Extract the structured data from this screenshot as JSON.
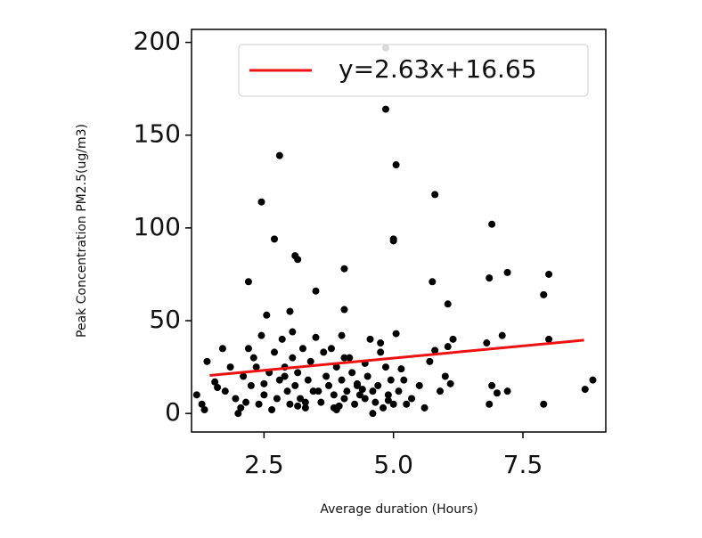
{
  "chart_data": {
    "type": "scatter",
    "xlabel": "Average duration (Hours)",
    "ylabel": "Peak Concentration PM2.5(ug/m3)",
    "xlim": [
      1.1,
      9.1
    ],
    "ylim": [
      -10,
      207
    ],
    "xticks": [
      2.5,
      {
        "value": 5,
        "label": "5.0"
      },
      7.5
    ],
    "yticks": [
      0,
      50,
      100,
      150,
      200
    ],
    "legend": "upper right",
    "color": "#000000",
    "x": [
      4.85,
      4.85,
      2.8,
      5.05,
      5.8,
      2.45,
      6.9,
      2.7,
      5.0,
      5.0,
      3.1,
      3.15,
      4.05,
      7.2,
      8.0,
      6.85,
      2.2,
      5.75,
      3.5,
      7.9,
      6.05,
      3.0,
      4.05,
      2.55,
      1.2,
      1.3,
      1.4,
      1.55,
      1.7,
      1.75,
      1.85,
      1.95,
      2.05,
      2.1,
      2.2,
      2.25,
      2.3,
      2.4,
      2.45,
      2.5,
      2.6,
      2.7,
      2.75,
      2.8,
      2.85,
      2.9,
      2.95,
      3.0,
      3.05,
      3.1,
      3.15,
      3.2,
      3.25,
      3.3,
      3.35,
      3.4,
      3.45,
      3.5,
      3.6,
      3.7,
      3.75,
      3.8,
      3.85,
      3.9,
      3.95,
      4.0,
      4.0,
      4.05,
      4.1,
      4.15,
      4.2,
      4.25,
      4.3,
      4.35,
      4.4,
      4.45,
      4.5,
      4.55,
      4.6,
      4.65,
      4.7,
      4.75,
      4.8,
      4.85,
      4.9,
      4.95,
      5.0,
      5.05,
      5.1,
      5.2,
      5.35,
      5.5,
      5.7,
      5.8,
      5.9,
      6.0,
      6.05,
      6.1,
      6.8,
      6.85,
      6.9,
      7.1,
      7.2,
      7.9,
      8.0,
      8.7,
      8.85,
      1.6,
      2.0,
      2.35,
      2.65,
      3.05,
      3.3,
      3.55,
      3.9,
      4.05,
      4.3,
      4.6,
      4.9,
      5.15,
      1.35,
      2.15,
      2.9,
      3.65,
      4.45,
      5.25,
      5.6,
      6.15,
      7.0,
      2.5,
      3.15,
      3.85,
      4.75
    ],
    "values": [
      197,
      164,
      139,
      134,
      118,
      114,
      102,
      94,
      94,
      93,
      85,
      83,
      78,
      76,
      75,
      73,
      71,
      71,
      66,
      64,
      59,
      55,
      56,
      53,
      10,
      5,
      28,
      17,
      35,
      12,
      25,
      8,
      3,
      20,
      35,
      15,
      30,
      5,
      42,
      10,
      22,
      33,
      8,
      18,
      40,
      25,
      12,
      5,
      30,
      15,
      22,
      8,
      35,
      3,
      18,
      28,
      12,
      41,
      6,
      20,
      15,
      35,
      10,
      25,
      4,
      42,
      18,
      8,
      12,
      30,
      22,
      5,
      16,
      10,
      13,
      8,
      20,
      40,
      12,
      6,
      15,
      38,
      3,
      25,
      10,
      18,
      5,
      43,
      12,
      18,
      8,
      15,
      28,
      34,
      12,
      20,
      36,
      16,
      38,
      5,
      15,
      42,
      12,
      5,
      40,
      13,
      18,
      14,
      0,
      25,
      2,
      44,
      6,
      12,
      2,
      30,
      15,
      0,
      7,
      24,
      2,
      6,
      20,
      33,
      27,
      5,
      3,
      40,
      11,
      16,
      4,
      3,
      33
    ]
  },
  "fit": {
    "name": "y=2.63x+16.65",
    "color": "#ee1111",
    "x": [
      1.45,
      8.68
    ],
    "values": [
      20.5,
      39.5
    ]
  }
}
